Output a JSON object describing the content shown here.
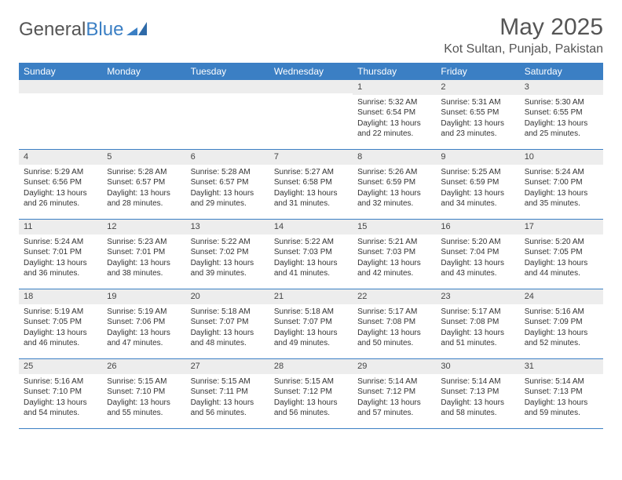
{
  "brand": {
    "name_a": "General",
    "name_b": "Blue"
  },
  "title": "May 2025",
  "location": "Kot Sultan, Punjab, Pakistan",
  "colors": {
    "header_bg": "#3b7fc4",
    "header_text": "#ffffff",
    "daynum_bg": "#ededed",
    "border": "#3b7fc4",
    "text": "#333333"
  },
  "day_names": [
    "Sunday",
    "Monday",
    "Tuesday",
    "Wednesday",
    "Thursday",
    "Friday",
    "Saturday"
  ],
  "weeks": [
    [
      null,
      null,
      null,
      null,
      {
        "n": "1",
        "sr": "5:32 AM",
        "ss": "6:54 PM",
        "dl": "13 hours and 22 minutes."
      },
      {
        "n": "2",
        "sr": "5:31 AM",
        "ss": "6:55 PM",
        "dl": "13 hours and 23 minutes."
      },
      {
        "n": "3",
        "sr": "5:30 AM",
        "ss": "6:55 PM",
        "dl": "13 hours and 25 minutes."
      }
    ],
    [
      {
        "n": "4",
        "sr": "5:29 AM",
        "ss": "6:56 PM",
        "dl": "13 hours and 26 minutes."
      },
      {
        "n": "5",
        "sr": "5:28 AM",
        "ss": "6:57 PM",
        "dl": "13 hours and 28 minutes."
      },
      {
        "n": "6",
        "sr": "5:28 AM",
        "ss": "6:57 PM",
        "dl": "13 hours and 29 minutes."
      },
      {
        "n": "7",
        "sr": "5:27 AM",
        "ss": "6:58 PM",
        "dl": "13 hours and 31 minutes."
      },
      {
        "n": "8",
        "sr": "5:26 AM",
        "ss": "6:59 PM",
        "dl": "13 hours and 32 minutes."
      },
      {
        "n": "9",
        "sr": "5:25 AM",
        "ss": "6:59 PM",
        "dl": "13 hours and 34 minutes."
      },
      {
        "n": "10",
        "sr": "5:24 AM",
        "ss": "7:00 PM",
        "dl": "13 hours and 35 minutes."
      }
    ],
    [
      {
        "n": "11",
        "sr": "5:24 AM",
        "ss": "7:01 PM",
        "dl": "13 hours and 36 minutes."
      },
      {
        "n": "12",
        "sr": "5:23 AM",
        "ss": "7:01 PM",
        "dl": "13 hours and 38 minutes."
      },
      {
        "n": "13",
        "sr": "5:22 AM",
        "ss": "7:02 PM",
        "dl": "13 hours and 39 minutes."
      },
      {
        "n": "14",
        "sr": "5:22 AM",
        "ss": "7:03 PM",
        "dl": "13 hours and 41 minutes."
      },
      {
        "n": "15",
        "sr": "5:21 AM",
        "ss": "7:03 PM",
        "dl": "13 hours and 42 minutes."
      },
      {
        "n": "16",
        "sr": "5:20 AM",
        "ss": "7:04 PM",
        "dl": "13 hours and 43 minutes."
      },
      {
        "n": "17",
        "sr": "5:20 AM",
        "ss": "7:05 PM",
        "dl": "13 hours and 44 minutes."
      }
    ],
    [
      {
        "n": "18",
        "sr": "5:19 AM",
        "ss": "7:05 PM",
        "dl": "13 hours and 46 minutes."
      },
      {
        "n": "19",
        "sr": "5:19 AM",
        "ss": "7:06 PM",
        "dl": "13 hours and 47 minutes."
      },
      {
        "n": "20",
        "sr": "5:18 AM",
        "ss": "7:07 PM",
        "dl": "13 hours and 48 minutes."
      },
      {
        "n": "21",
        "sr": "5:18 AM",
        "ss": "7:07 PM",
        "dl": "13 hours and 49 minutes."
      },
      {
        "n": "22",
        "sr": "5:17 AM",
        "ss": "7:08 PM",
        "dl": "13 hours and 50 minutes."
      },
      {
        "n": "23",
        "sr": "5:17 AM",
        "ss": "7:08 PM",
        "dl": "13 hours and 51 minutes."
      },
      {
        "n": "24",
        "sr": "5:16 AM",
        "ss": "7:09 PM",
        "dl": "13 hours and 52 minutes."
      }
    ],
    [
      {
        "n": "25",
        "sr": "5:16 AM",
        "ss": "7:10 PM",
        "dl": "13 hours and 54 minutes."
      },
      {
        "n": "26",
        "sr": "5:15 AM",
        "ss": "7:10 PM",
        "dl": "13 hours and 55 minutes."
      },
      {
        "n": "27",
        "sr": "5:15 AM",
        "ss": "7:11 PM",
        "dl": "13 hours and 56 minutes."
      },
      {
        "n": "28",
        "sr": "5:15 AM",
        "ss": "7:12 PM",
        "dl": "13 hours and 56 minutes."
      },
      {
        "n": "29",
        "sr": "5:14 AM",
        "ss": "7:12 PM",
        "dl": "13 hours and 57 minutes."
      },
      {
        "n": "30",
        "sr": "5:14 AM",
        "ss": "7:13 PM",
        "dl": "13 hours and 58 minutes."
      },
      {
        "n": "31",
        "sr": "5:14 AM",
        "ss": "7:13 PM",
        "dl": "13 hours and 59 minutes."
      }
    ]
  ],
  "labels": {
    "sunrise": "Sunrise: ",
    "sunset": "Sunset: ",
    "daylight": "Daylight: "
  }
}
